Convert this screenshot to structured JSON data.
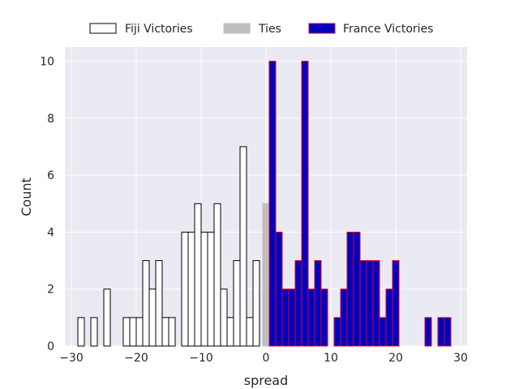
{
  "chart_data": {
    "type": "bar",
    "xlabel": "spread",
    "ylabel": "Count",
    "xlim": [
      -31,
      31
    ],
    "ylim": [
      0,
      10.5
    ],
    "xticks": [
      -30,
      -20,
      -10,
      0,
      10,
      20,
      30
    ],
    "yticks": [
      0,
      2,
      4,
      6,
      8,
      10
    ],
    "grid": true,
    "legend_position": "top-center",
    "bin_width": 1,
    "series": [
      {
        "name": "Fiji Victories",
        "fill": "#ffffff",
        "edge": "#000000",
        "bins": [
          {
            "x": -29,
            "count": 1
          },
          {
            "x": -27,
            "count": 1
          },
          {
            "x": -25,
            "count": 2
          },
          {
            "x": -22,
            "count": 1
          },
          {
            "x": -21,
            "count": 1
          },
          {
            "x": -20,
            "count": 1
          },
          {
            "x": -19,
            "count": 3
          },
          {
            "x": -18,
            "count": 2
          },
          {
            "x": -17,
            "count": 3
          },
          {
            "x": -16,
            "count": 1
          },
          {
            "x": -15,
            "count": 1
          },
          {
            "x": -13,
            "count": 4
          },
          {
            "x": -12,
            "count": 4
          },
          {
            "x": -11,
            "count": 5
          },
          {
            "x": -10,
            "count": 4
          },
          {
            "x": -9,
            "count": 4
          },
          {
            "x": -8,
            "count": 5
          },
          {
            "x": -7,
            "count": 2
          },
          {
            "x": -6,
            "count": 1
          },
          {
            "x": -5,
            "count": 3
          },
          {
            "x": -4,
            "count": 7
          },
          {
            "x": -3,
            "count": 1
          },
          {
            "x": -2,
            "count": 3
          }
        ]
      },
      {
        "name": "Ties",
        "fill": "#bfbfbf",
        "edge": "#bfbfbf",
        "bins": [
          {
            "x": -0.5,
            "count": 5
          }
        ]
      },
      {
        "name": "France Victories",
        "fill": "#0000bf",
        "edge": "#e0002a",
        "bins": [
          {
            "x": 0.5,
            "count": 10
          },
          {
            "x": 1.5,
            "count": 4
          },
          {
            "x": 2.5,
            "count": 2
          },
          {
            "x": 3.5,
            "count": 2
          },
          {
            "x": 4.5,
            "count": 3
          },
          {
            "x": 5.5,
            "count": 10
          },
          {
            "x": 6.5,
            "count": 2
          },
          {
            "x": 7.5,
            "count": 3
          },
          {
            "x": 8.5,
            "count": 2
          },
          {
            "x": 10.5,
            "count": 1
          },
          {
            "x": 11.5,
            "count": 2
          },
          {
            "x": 12.5,
            "count": 4
          },
          {
            "x": 13.5,
            "count": 4
          },
          {
            "x": 14.5,
            "count": 3
          },
          {
            "x": 15.5,
            "count": 3
          },
          {
            "x": 16.5,
            "count": 3
          },
          {
            "x": 17.5,
            "count": 1
          },
          {
            "x": 18.5,
            "count": 2
          },
          {
            "x": 19.5,
            "count": 3
          },
          {
            "x": 24.5,
            "count": 1
          },
          {
            "x": 26.5,
            "count": 1
          },
          {
            "x": 27.5,
            "count": 1
          }
        ]
      }
    ]
  }
}
